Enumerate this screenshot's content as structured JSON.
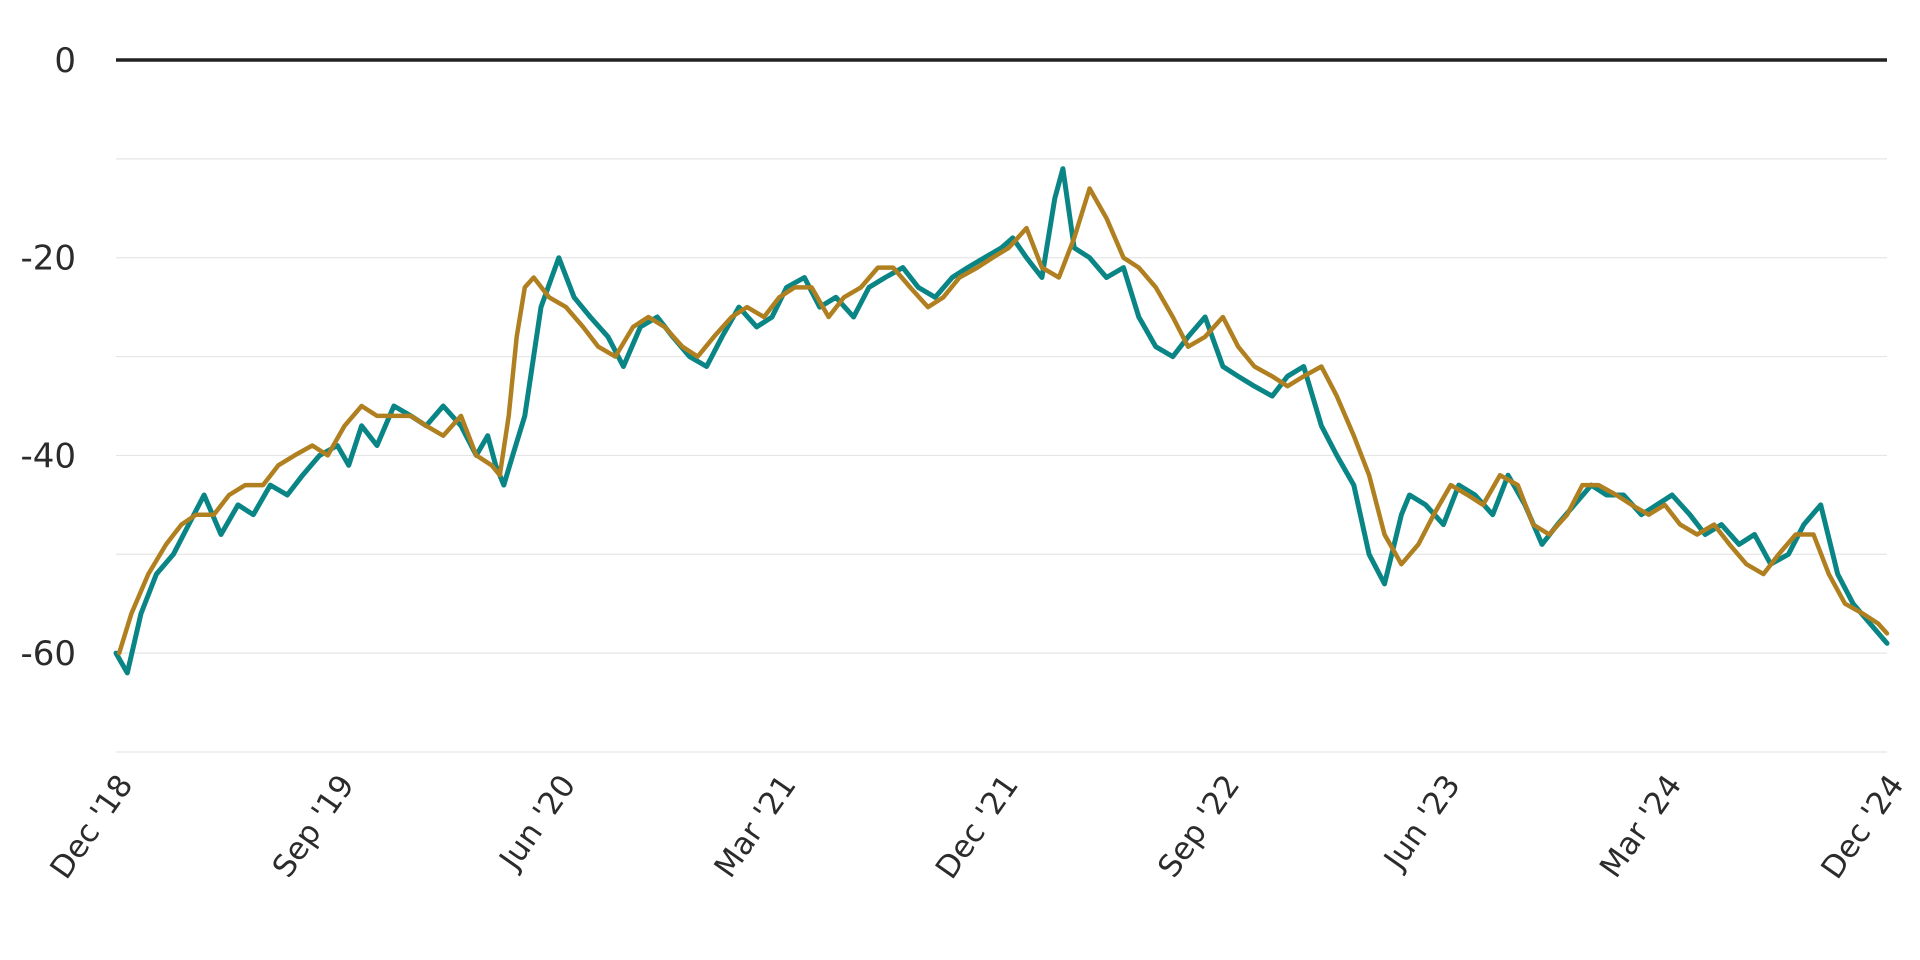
{
  "chart_data": {
    "type": "line",
    "title": "",
    "xlabel": "",
    "ylabel": "",
    "x_range": [
      "2018-12",
      "2024-12"
    ],
    "ylim": [
      -70,
      0
    ],
    "y_ticks": [
      0,
      -20,
      -40,
      -60
    ],
    "y_tick_labels": [
      "0",
      "-20",
      "-40",
      "-60"
    ],
    "x_ticks": [
      "2018-12",
      "2019-09",
      "2020-06",
      "2021-03",
      "2021-12",
      "2022-09",
      "2023-06",
      "2024-03",
      "2024-12"
    ],
    "x_tick_labels": [
      "Dec '18",
      "Sep '19",
      "Jun '20",
      "Mar '21",
      "Dec '21",
      "Sep '22",
      "Jun '23",
      "Mar '24",
      "Dec '24"
    ],
    "grid": true,
    "zero_line": true,
    "legend": "none",
    "series": [
      {
        "color": "#0a8585",
        "x": [
          "2018-12-01",
          "2018-12-15",
          "2019-01-01",
          "2019-01-20",
          "2019-02-10",
          "2019-03-01",
          "2019-03-20",
          "2019-04-10",
          "2019-05-01",
          "2019-05-20",
          "2019-06-10",
          "2019-07-01",
          "2019-07-20",
          "2019-08-10",
          "2019-09-01",
          "2019-09-15",
          "2019-10-01",
          "2019-10-20",
          "2019-11-10",
          "2019-12-01",
          "2019-12-20",
          "2020-01-10",
          "2020-02-01",
          "2020-02-20",
          "2020-03-05",
          "2020-03-15",
          "2020-03-25",
          "2020-04-05",
          "2020-04-20",
          "2020-05-10",
          "2020-06-01",
          "2020-06-20",
          "2020-07-10",
          "2020-08-01",
          "2020-08-20",
          "2020-09-10",
          "2020-10-01",
          "2020-10-20",
          "2020-11-10",
          "2020-12-01",
          "2020-12-20",
          "2021-01-10",
          "2021-02-01",
          "2021-02-20",
          "2021-03-10",
          "2021-04-01",
          "2021-04-20",
          "2021-05-10",
          "2021-06-01",
          "2021-06-20",
          "2021-07-10",
          "2021-08-01",
          "2021-08-20",
          "2021-09-10",
          "2021-10-01",
          "2021-10-20",
          "2021-11-10",
          "2021-12-01",
          "2021-12-15",
          "2022-01-01",
          "2022-01-20",
          "2022-02-05",
          "2022-02-15",
          "2022-03-01",
          "2022-03-20",
          "2022-04-10",
          "2022-05-01",
          "2022-05-20",
          "2022-06-10",
          "2022-07-01",
          "2022-07-20",
          "2022-08-10",
          "2022-09-01",
          "2022-09-20",
          "2022-10-10",
          "2022-11-01",
          "2022-11-20",
          "2022-12-10",
          "2023-01-01",
          "2023-01-20",
          "2023-02-10",
          "2023-03-01",
          "2023-03-20",
          "2023-04-01",
          "2023-04-10",
          "2023-04-20",
          "2023-05-10",
          "2023-06-01",
          "2023-06-20",
          "2023-07-10",
          "2023-08-01",
          "2023-08-20",
          "2023-09-10",
          "2023-10-01",
          "2023-10-20",
          "2023-11-10",
          "2023-12-01",
          "2023-12-20",
          "2024-01-10",
          "2024-02-01",
          "2024-02-20",
          "2024-03-10",
          "2024-04-01",
          "2024-04-20",
          "2024-05-10",
          "2024-06-01",
          "2024-06-20",
          "2024-07-10",
          "2024-08-01",
          "2024-08-20",
          "2024-09-10",
          "2024-10-01",
          "2024-10-20",
          "2024-11-10",
          "2024-12-01"
        ],
        "y": [
          -60,
          -62,
          -56,
          -52,
          -50,
          -47,
          -44,
          -48,
          -45,
          -46,
          -43,
          -44,
          -42,
          -40,
          -39,
          -41,
          -37,
          -39,
          -35,
          -36,
          -37,
          -35,
          -37,
          -40,
          -38,
          -41,
          -43,
          -40,
          -36,
          -25,
          -20,
          -24,
          -26,
          -28,
          -31,
          -27,
          -26,
          -28,
          -30,
          -31,
          -28,
          -25,
          -27,
          -26,
          -23,
          -22,
          -25,
          -24,
          -26,
          -23,
          -22,
          -21,
          -23,
          -24,
          -22,
          -21,
          -20,
          -19,
          -18,
          -20,
          -22,
          -14,
          -11,
          -19,
          -20,
          -22,
          -21,
          -26,
          -29,
          -30,
          -28,
          -26,
          -31,
          -32,
          -33,
          -34,
          -32,
          -31,
          -37,
          -40,
          -43,
          -50,
          -53,
          -49,
          -46,
          -44,
          -45,
          -47,
          -43,
          -44,
          -46,
          -42,
          -45,
          -49,
          -47,
          -45,
          -43,
          -44,
          -44,
          -46,
          -45,
          -44,
          -46,
          -48,
          -47,
          -49,
          -48,
          -51,
          -50,
          -47,
          -45,
          -52,
          -55,
          -57,
          -59
        ]
      },
      {
        "color": "#b08020",
        "x": [
          "2018-12-05",
          "2018-12-20",
          "2019-01-10",
          "2019-02-01",
          "2019-02-20",
          "2019-03-10",
          "2019-04-01",
          "2019-04-20",
          "2019-05-10",
          "2019-06-01",
          "2019-06-20",
          "2019-07-10",
          "2019-08-01",
          "2019-08-20",
          "2019-09-10",
          "2019-10-01",
          "2019-10-20",
          "2019-11-10",
          "2019-12-01",
          "2019-12-20",
          "2020-01-10",
          "2020-02-01",
          "2020-02-20",
          "2020-03-10",
          "2020-03-20",
          "2020-03-31",
          "2020-04-10",
          "2020-04-20",
          "2020-05-01",
          "2020-05-20",
          "2020-06-10",
          "2020-07-01",
          "2020-07-20",
          "2020-08-10",
          "2020-09-01",
          "2020-09-20",
          "2020-10-10",
          "2020-11-01",
          "2020-11-20",
          "2020-12-10",
          "2021-01-01",
          "2021-01-20",
          "2021-02-10",
          "2021-03-01",
          "2021-03-20",
          "2021-04-10",
          "2021-05-01",
          "2021-05-20",
          "2021-06-10",
          "2021-07-01",
          "2021-07-20",
          "2021-08-10",
          "2021-09-01",
          "2021-09-20",
          "2021-10-10",
          "2021-11-01",
          "2021-11-20",
          "2021-12-10",
          "2022-01-01",
          "2022-01-20",
          "2022-02-10",
          "2022-03-01",
          "2022-03-20",
          "2022-04-10",
          "2022-05-01",
          "2022-05-20",
          "2022-06-10",
          "2022-07-01",
          "2022-07-20",
          "2022-08-10",
          "2022-09-01",
          "2022-09-20",
          "2022-10-10",
          "2022-11-01",
          "2022-11-20",
          "2022-12-10",
          "2023-01-01",
          "2023-01-20",
          "2023-02-10",
          "2023-03-01",
          "2023-03-20",
          "2023-04-10",
          "2023-05-01",
          "2023-05-20",
          "2023-06-10",
          "2023-07-01",
          "2023-07-20",
          "2023-08-10",
          "2023-09-01",
          "2023-09-20",
          "2023-10-10",
          "2023-11-01",
          "2023-11-20",
          "2023-12-10",
          "2024-01-01",
          "2024-01-20",
          "2024-02-10",
          "2024-03-01",
          "2024-03-20",
          "2024-04-10",
          "2024-05-01",
          "2024-05-20",
          "2024-06-10",
          "2024-07-01",
          "2024-07-20",
          "2024-08-10",
          "2024-09-01",
          "2024-09-20",
          "2024-10-10",
          "2024-11-01",
          "2024-11-20",
          "2024-12-01"
        ],
        "y": [
          -60,
          -56,
          -52,
          -49,
          -47,
          -46,
          -46,
          -44,
          -43,
          -43,
          -41,
          -40,
          -39,
          -40,
          -37,
          -35,
          -36,
          -36,
          -36,
          -37,
          -38,
          -36,
          -40,
          -41,
          -42,
          -36,
          -28,
          -23,
          -22,
          -24,
          -25,
          -27,
          -29,
          -30,
          -27,
          -26,
          -27,
          -29,
          -30,
          -28,
          -26,
          -25,
          -26,
          -24,
          -23,
          -23,
          -26,
          -24,
          -23,
          -21,
          -21,
          -23,
          -25,
          -24,
          -22,
          -21,
          -20,
          -19,
          -17,
          -21,
          -22,
          -18,
          -13,
          -16,
          -20,
          -21,
          -23,
          -26,
          -29,
          -28,
          -26,
          -29,
          -31,
          -32,
          -33,
          -32,
          -31,
          -34,
          -38,
          -42,
          -48,
          -51,
          -49,
          -46,
          -43,
          -44,
          -45,
          -42,
          -43,
          -47,
          -48,
          -46,
          -43,
          -43,
          -44,
          -45,
          -46,
          -45,
          -47,
          -48,
          -47,
          -49,
          -51,
          -52,
          -50,
          -48,
          -48,
          -52,
          -55,
          -56,
          -57,
          -58
        ]
      }
    ]
  }
}
